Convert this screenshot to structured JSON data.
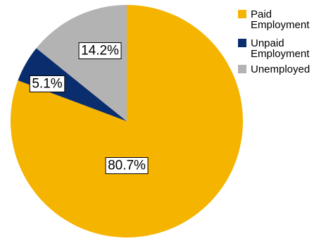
{
  "chart_data": {
    "type": "pie",
    "slices": [
      {
        "label": "Paid Employment",
        "label_lines": [
          "Paid",
          "Employment"
        ],
        "value": 80.7,
        "display": "80.7%",
        "color": "#F5B400"
      },
      {
        "label": "Unpaid Employment",
        "label_lines": [
          "Unpaid",
          "Employment"
        ],
        "value": 5.1,
        "display": "5.1%",
        "color": "#0A2D6E"
      },
      {
        "label": "Unemployed",
        "label_lines": [
          "Unemployed"
        ],
        "value": 14.2,
        "display": "14.2%",
        "color": "#B3B3B3"
      }
    ],
    "start_angle": "12 o'clock",
    "direction": "clockwise",
    "legend_position": "top-right"
  }
}
